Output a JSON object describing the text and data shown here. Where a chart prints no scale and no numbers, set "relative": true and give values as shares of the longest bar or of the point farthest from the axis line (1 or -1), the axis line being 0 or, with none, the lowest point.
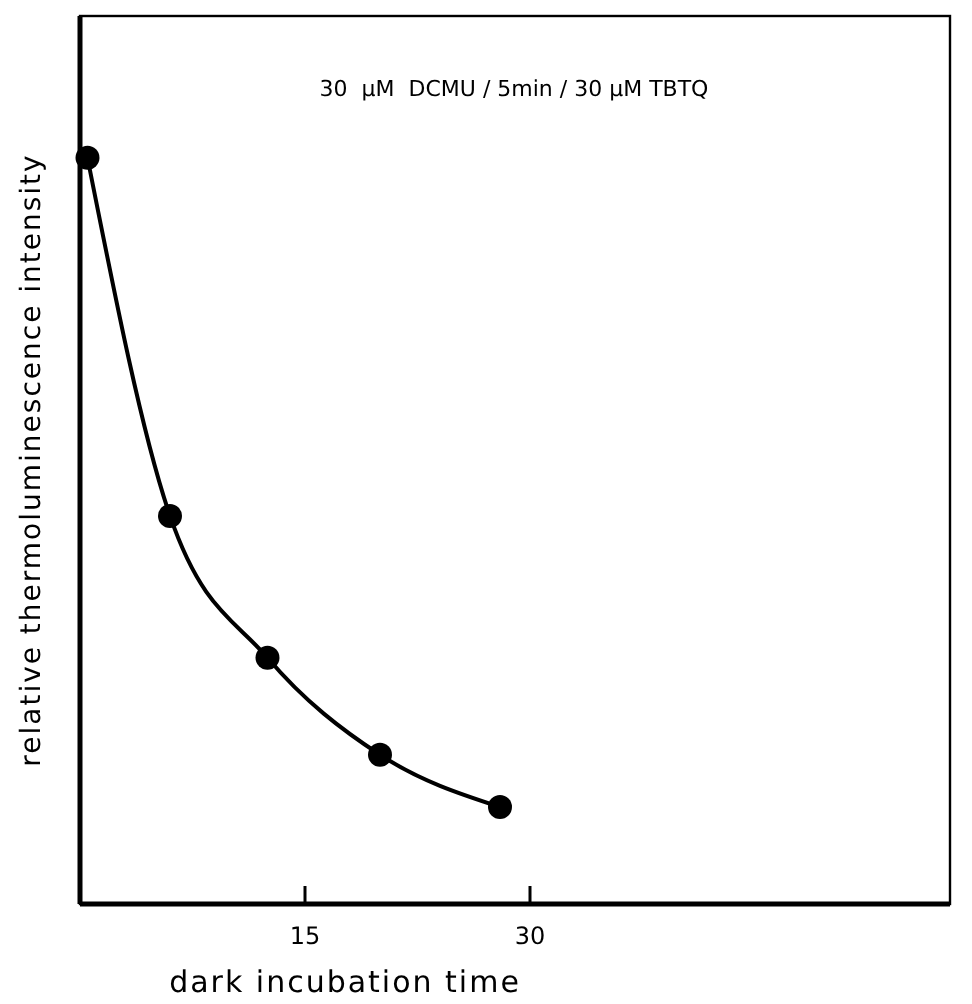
{
  "chart_data": {
    "type": "line",
    "title": "30  µM  DCMU / 5min / 30 µM TBTQ",
    "xlabel": "dark incubation time",
    "ylabel": "relative thermoluminescence intensity",
    "relative": true,
    "x": [
      0.5,
      6,
      12.5,
      20,
      28
    ],
    "series": [
      {
        "color": "#000000",
        "values": [
          1,
          0.52,
          0.33,
          0.2,
          0.13
        ]
      }
    ],
    "xlim": [
      0,
      58
    ],
    "xticks": [
      15,
      30
    ],
    "marker": "circle",
    "line_style": "solid",
    "grid": false
  }
}
